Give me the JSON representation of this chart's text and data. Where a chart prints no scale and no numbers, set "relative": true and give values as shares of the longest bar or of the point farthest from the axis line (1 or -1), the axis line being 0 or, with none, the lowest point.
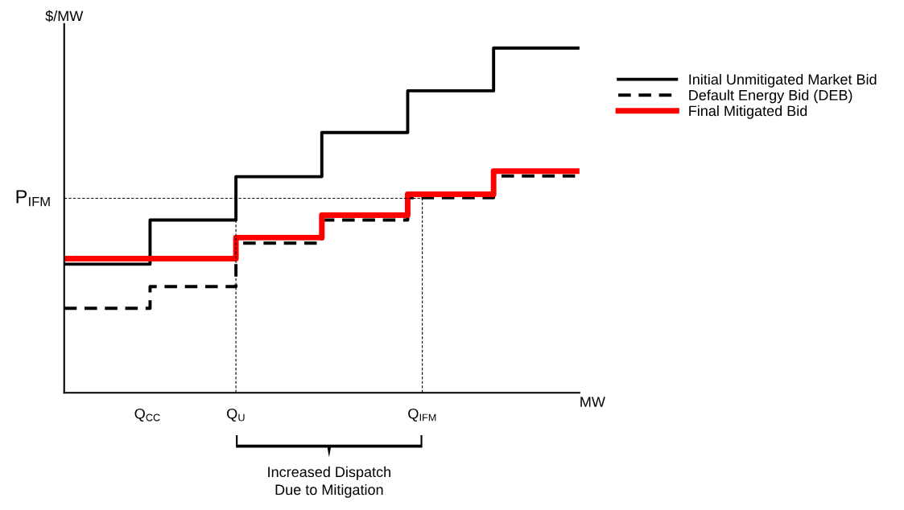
{
  "chart_data": {
    "type": "step",
    "relative": true,
    "ylabel": "$/MW",
    "xlabel": "MW",
    "categories": [
      null,
      null,
      null,
      null,
      null,
      null,
      null
    ],
    "series": [
      {
        "name": "Initial Unmitigated Market Bid",
        "color": "#000000",
        "line_style": "solid",
        "values": [
          0.373,
          0.501,
          0.627,
          0.755,
          0.876,
          1.0,
          1.0
        ]
      },
      {
        "name": "Default Energy Bid (DEB)",
        "color": "#000000",
        "line_style": "dashed",
        "values": [
          0.245,
          0.308,
          0.434,
          0.501,
          0.566,
          0.629,
          0.629
        ]
      },
      {
        "name": "Final Mitigated Bid",
        "color": "#ff0000",
        "line_style": "solid",
        "values": [
          0.389,
          0.389,
          0.45,
          0.515,
          0.576,
          0.643,
          0.643
        ]
      }
    ],
    "ref_lines": [
      {
        "axis": "y",
        "value": 0.564,
        "label": "P$_{IFM}$",
        "color": "#000000",
        "line_style": "dashed"
      }
    ],
    "annotations": [
      "Q$_{CC}$",
      "Q$_{U}$",
      "Q$_{IFM}$",
      "Increased Dispatch\nDue to Mitigation"
    ],
    "legend": "right"
  }
}
